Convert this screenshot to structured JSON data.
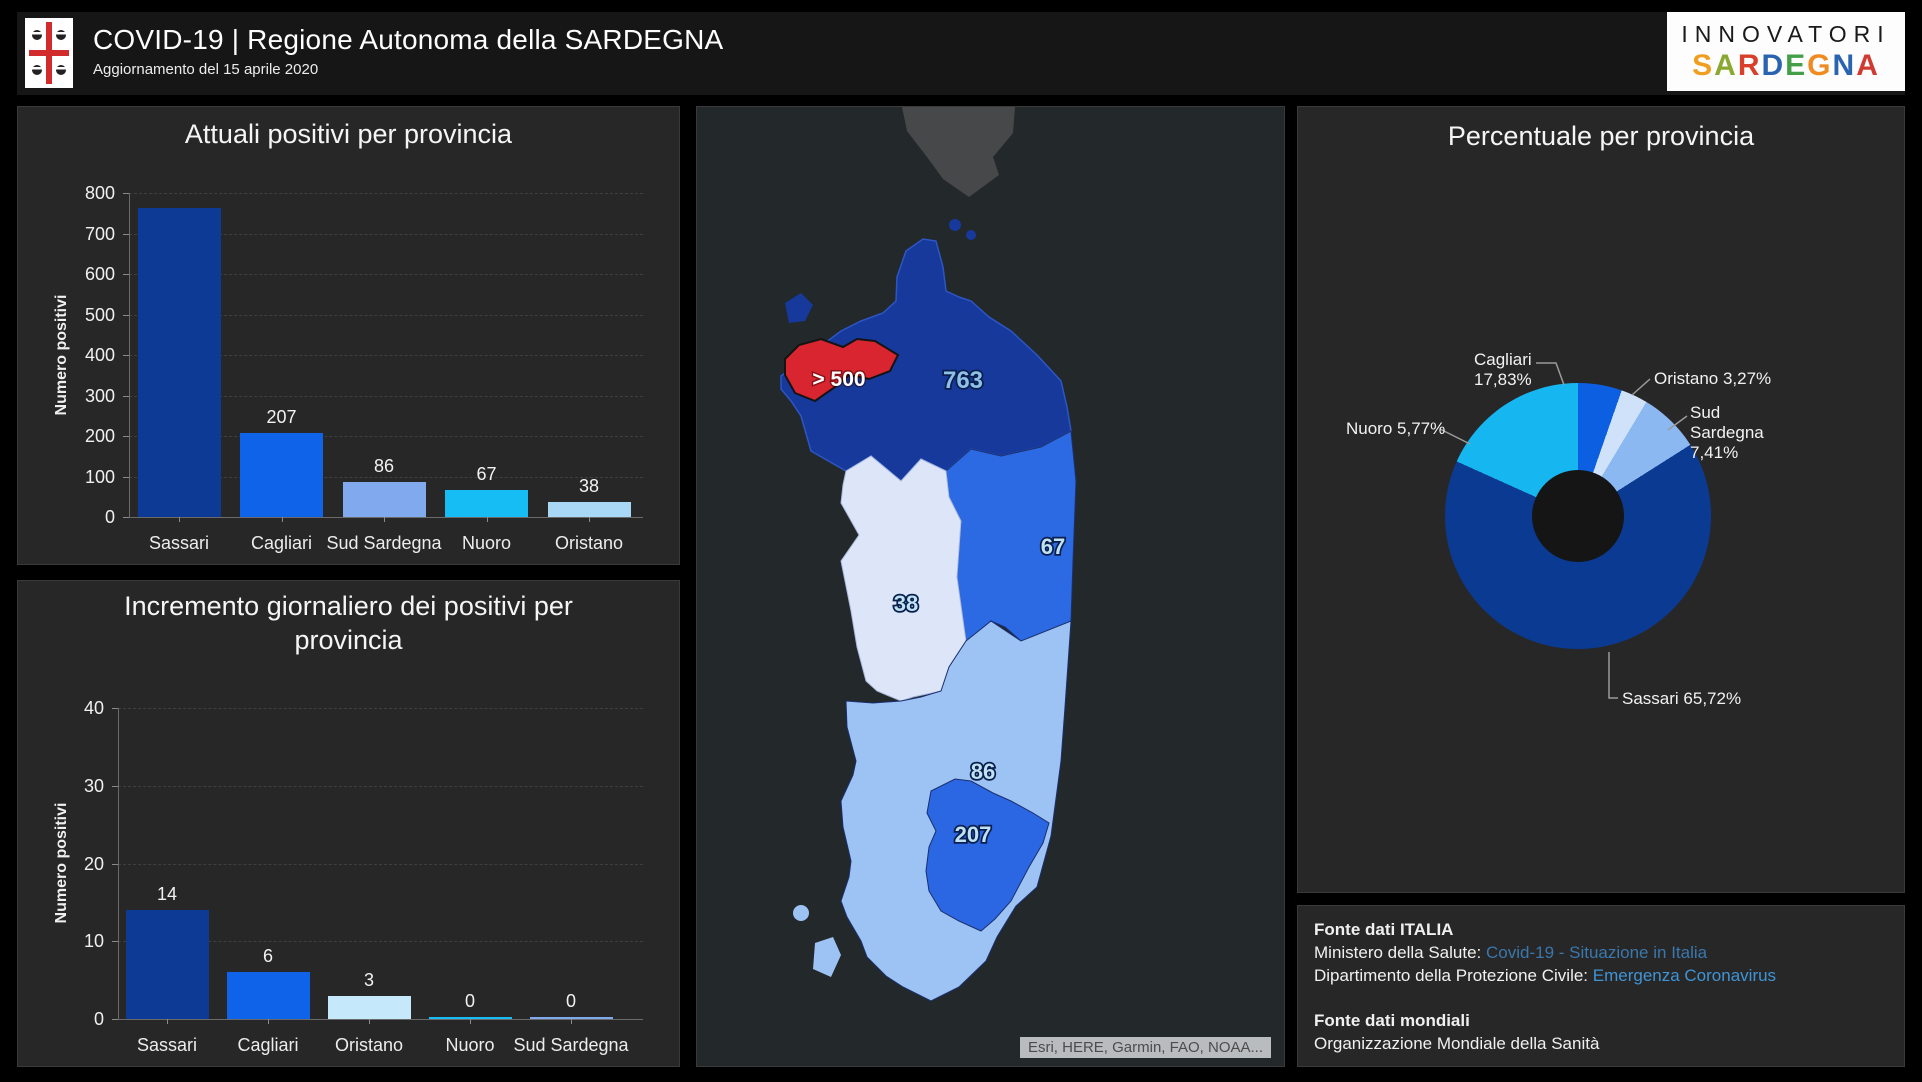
{
  "header": {
    "title": "COVID-19 | Regione Autonoma della SARDEGNA",
    "subtitle": "Aggiornamento del 15 aprile 2020",
    "logo_line1": "INNOVATORI",
    "logo_line2": "SARDEGNA",
    "logo_letter_colors": [
      "#f09e1f",
      "#8aa832",
      "#d8402c",
      "#2a64b0",
      "#43a048",
      "#ef8b21",
      "#2a64b0",
      "#cf3b30"
    ]
  },
  "chart_data": [
    {
      "type": "bar",
      "title": "Attuali positivi per provincia",
      "ylabel": "Numero positivi",
      "categories": [
        "Sassari",
        "Cagliari",
        "Sud Sardegna",
        "Nuoro",
        "Oristano"
      ],
      "values": [
        763,
        207,
        86,
        67,
        38
      ],
      "colors": [
        "#0c3a94",
        "#0e63e8",
        "#80a9ee",
        "#16bdf4",
        "#a8d8f5"
      ],
      "ymax": 800,
      "yticks": [
        0,
        100,
        200,
        300,
        400,
        500,
        600,
        700,
        800
      ],
      "grid": "dashed"
    },
    {
      "type": "bar",
      "title": "Incremento giornaliero dei positivi per provincia",
      "ylabel": "Numero positivi",
      "categories": [
        "Sassari",
        "Cagliari",
        "Oristano",
        "Nuoro",
        "Sud Sardegna"
      ],
      "values": [
        14,
        6,
        3,
        0,
        0
      ],
      "colors": [
        "#0c3a94",
        "#0e63e8",
        "#c5e9fb",
        "#16bdf4",
        "#80a9ee"
      ],
      "ymax": 40,
      "yticks": [
        0,
        10,
        20,
        30,
        40
      ],
      "grid": "dashed"
    },
    {
      "type": "pie",
      "title": "Percentuale per provincia",
      "donut": true,
      "start_angle_deg": -45,
      "legend_position": "callouts",
      "slices": [
        {
          "name": "Cagliari",
          "pct": 17.83,
          "color": "#0b5fe0",
          "callout_lines": [
            "Cagliari",
            "17,83%"
          ]
        },
        {
          "name": "Oristano",
          "pct": 3.27,
          "color": "#cfe2f9",
          "callout_lines": [
            "Oristano 3,27%"
          ]
        },
        {
          "name": "Sud Sardegna",
          "pct": 7.41,
          "color": "#8bb8f1",
          "callout_lines": [
            "Sud",
            "Sardegna",
            "7,41%"
          ]
        },
        {
          "name": "Sassari",
          "pct": 65.72,
          "color": "#0a3a92",
          "callout_lines": [
            "Sassari 65,72%"
          ]
        },
        {
          "name": "Nuoro",
          "pct": 5.77,
          "color": "#16b7f0",
          "callout_lines": [
            "Nuoro 5,77%"
          ]
        }
      ]
    }
  ],
  "map": {
    "labels": {
      "sassari": "763",
      "alert": "> 500",
      "nuoro": "67",
      "oristano": "38",
      "sud_sardegna": "86",
      "cagliari": "207"
    },
    "region_colors": {
      "sea": "#23282b",
      "corsica": "#47484a",
      "sassari": "#16399b",
      "alert_red": "#d8252f",
      "nuoro": "#2b6ae3",
      "oristano": "#dde6f8",
      "sud_sardegna": "#9cc3f3",
      "cagliari": "#2b67e2"
    },
    "attribution": "Esri, HERE, Garmin, FAO, NOAA..."
  },
  "sources": {
    "italy_heading": "Fonte dati ITALIA",
    "line1_label": "Ministero della Salute: ",
    "line1_link": "Covid-19 - Situazione in Italia",
    "line2_label": "Dipartimento della Protezione Civile: ",
    "line2_link": "Emergenza Coronavirus",
    "world_heading": "Fonte dati mondiali",
    "world_line": "Organizzazione Mondiale della Sanità"
  }
}
